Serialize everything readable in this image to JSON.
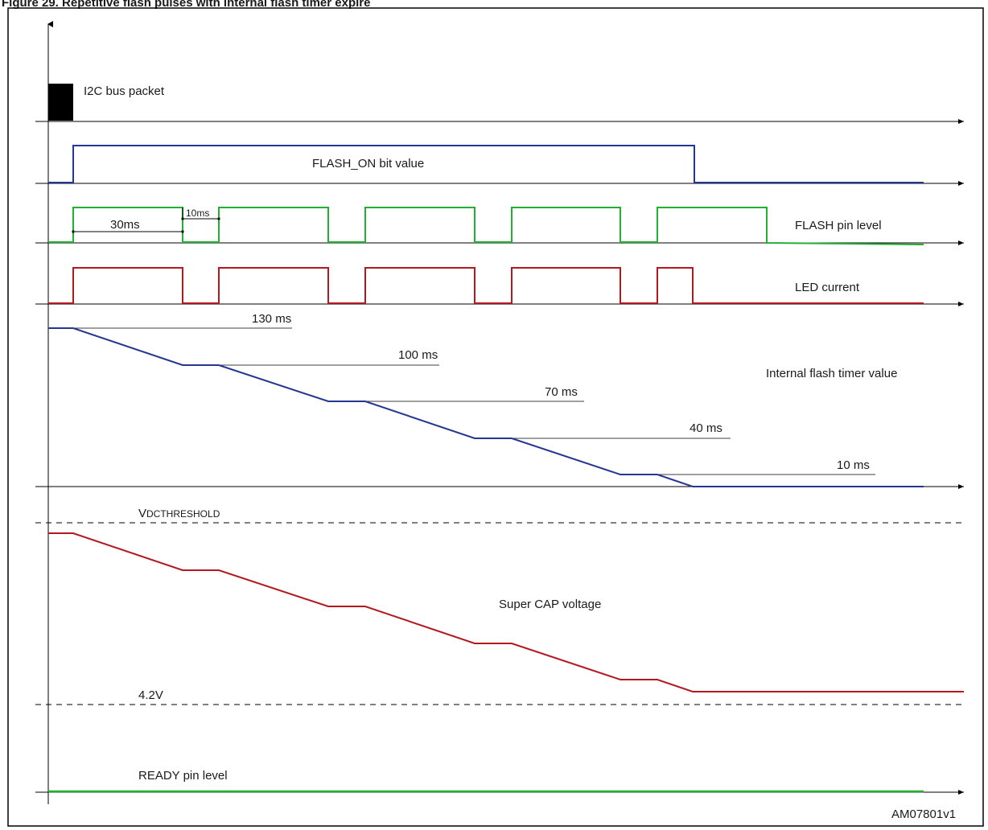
{
  "figure": {
    "title": "Figure 29. Repetitive flash pulses with internal flash timer expire",
    "ref": "AM07801v1"
  },
  "colors": {
    "blue": "#24368f",
    "green": "#22b033",
    "red": "#b3181f",
    "black": "#000000"
  },
  "signals": {
    "i2c": "I2C bus packet",
    "flash_on": "FLASH_ON bit value",
    "flash_pin": "FLASH pin level",
    "led_current": "LED current",
    "timer": "Internal flash timer value",
    "supercap": "Super CAP voltage",
    "ready": "READY pin level"
  },
  "annotations": {
    "pulse_width": "30ms",
    "pulse_gap": "10ms",
    "vdc_threshold_prefix": "V",
    "vdc_threshold_sub": "DCTHRESHOLD",
    "v_min": "4.2V"
  },
  "timer_values": [
    "130 ms",
    "100 ms",
    "70 ms",
    "40 ms",
    "10 ms"
  ]
}
